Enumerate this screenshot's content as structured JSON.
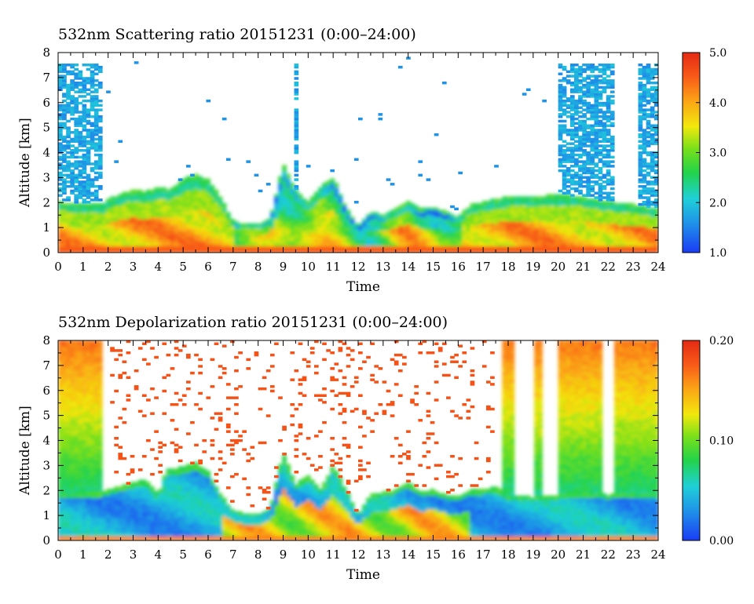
{
  "chart_data": [
    {
      "type": "heatmap",
      "title": "532nm Scattering ratio  20151231 (0:00–24:00)",
      "xlabel": "Time",
      "ylabel": "Altitude [km]",
      "xlim": [
        0,
        24
      ],
      "ylim": [
        0,
        8
      ],
      "x_ticks": [
        "0",
        "1",
        "2",
        "3",
        "4",
        "5",
        "6",
        "7",
        "8",
        "9",
        "10",
        "11",
        "12",
        "13",
        "14",
        "15",
        "16",
        "17",
        "18",
        "19",
        "20",
        "21",
        "22",
        "23",
        "24"
      ],
      "y_ticks": [
        "0",
        "1",
        "2",
        "3",
        "4",
        "5",
        "6",
        "7",
        "8"
      ],
      "colorbar": {
        "range": [
          1.0,
          5.0
        ],
        "ticks": [
          "1.0",
          "2.0",
          "3.0",
          "4.0",
          "5.0"
        ]
      },
      "cloud_top_km": [
        [
          0,
          2.0
        ],
        [
          1,
          1.9
        ],
        [
          1.8,
          1.9
        ],
        [
          2,
          2.1
        ],
        [
          3,
          2.5
        ],
        [
          3.5,
          2.4
        ],
        [
          4,
          2.6
        ],
        [
          4.5,
          2.5
        ],
        [
          5,
          2.9
        ],
        [
          5.5,
          3.1
        ],
        [
          6,
          2.9
        ],
        [
          6.5,
          2.2
        ],
        [
          7,
          1.2
        ],
        [
          7.5,
          1.1
        ],
        [
          8,
          1.1
        ],
        [
          8.5,
          1.4
        ],
        [
          9,
          3.5
        ],
        [
          9.5,
          2.5
        ],
        [
          10,
          2.0
        ],
        [
          10.5,
          2.6
        ],
        [
          11,
          3.0
        ],
        [
          11.5,
          1.8
        ],
        [
          12,
          1.0
        ],
        [
          12.5,
          1.6
        ],
        [
          13,
          1.5
        ],
        [
          13.5,
          1.7
        ],
        [
          14,
          2.0
        ],
        [
          14.5,
          1.7
        ],
        [
          15,
          1.8
        ],
        [
          15.5,
          1.6
        ],
        [
          16,
          1.4
        ],
        [
          16.5,
          1.9
        ],
        [
          17,
          2.0
        ],
        [
          17.5,
          2.1
        ],
        [
          18,
          2.2
        ],
        [
          19,
          2.2
        ],
        [
          20,
          2.3
        ],
        [
          21,
          2.2
        ],
        [
          22,
          2.0
        ],
        [
          23,
          1.9
        ],
        [
          24,
          1.7
        ]
      ],
      "high_level_signal_hours": [
        [
          0,
          1.8
        ],
        [
          9.4,
          9.6
        ],
        [
          20,
          22.2
        ],
        [
          23.2,
          24
        ]
      ]
    },
    {
      "type": "heatmap",
      "title": "532nm Depolarization ratio  20151231 (0:00–24:00)",
      "xlabel": "Time",
      "ylabel": "Altitude [km]",
      "xlim": [
        0,
        24
      ],
      "ylim": [
        0,
        8
      ],
      "x_ticks": [
        "0",
        "1",
        "2",
        "3",
        "4",
        "5",
        "6",
        "7",
        "8",
        "9",
        "10",
        "11",
        "12",
        "13",
        "14",
        "15",
        "16",
        "17",
        "18",
        "19",
        "20",
        "21",
        "22",
        "23",
        "24"
      ],
      "y_ticks": [
        "0",
        "1",
        "2",
        "3",
        "4",
        "5",
        "6",
        "7",
        "8"
      ],
      "colorbar": {
        "range": [
          0.0,
          0.2
        ],
        "ticks": [
          "0.00",
          "0.10",
          "0.20"
        ]
      },
      "layer_top_km": [
        [
          0,
          1.8
        ],
        [
          1,
          1.9
        ],
        [
          1.8,
          1.9
        ],
        [
          2,
          2.0
        ],
        [
          3,
          2.3
        ],
        [
          3.5,
          2.4
        ],
        [
          4,
          1.8
        ],
        [
          4.3,
          2.8
        ],
        [
          5,
          2.9
        ],
        [
          5.5,
          3.1
        ],
        [
          6,
          2.7
        ],
        [
          6.5,
          1.8
        ],
        [
          7,
          1.2
        ],
        [
          7.5,
          1.0
        ],
        [
          8,
          1.0
        ],
        [
          8.5,
          1.3
        ],
        [
          9,
          3.5
        ],
        [
          9.5,
          2.2
        ],
        [
          10,
          2.6
        ],
        [
          10.5,
          2.0
        ],
        [
          11,
          3.0
        ],
        [
          11.5,
          2.0
        ],
        [
          12,
          1.0
        ],
        [
          12.5,
          1.8
        ],
        [
          13,
          1.9
        ],
        [
          13.5,
          2.0
        ],
        [
          14,
          2.3
        ],
        [
          14.5,
          1.9
        ],
        [
          15,
          2.0
        ],
        [
          15.5,
          1.8
        ],
        [
          16,
          1.7
        ],
        [
          16.5,
          2.0
        ],
        [
          17,
          2.0
        ],
        [
          17.5,
          2.1
        ],
        [
          18,
          1.8
        ],
        [
          19,
          1.7
        ],
        [
          20,
          1.8
        ],
        [
          21,
          1.9
        ],
        [
          22,
          1.8
        ],
        [
          23,
          1.9
        ],
        [
          24,
          1.8
        ]
      ],
      "high_signal_columns_hours": [
        [
          0,
          1.8
        ],
        [
          17.8,
          18.3
        ],
        [
          19.0,
          19.4
        ],
        [
          20.0,
          21.7
        ],
        [
          22.3,
          24.0
        ]
      ]
    }
  ]
}
